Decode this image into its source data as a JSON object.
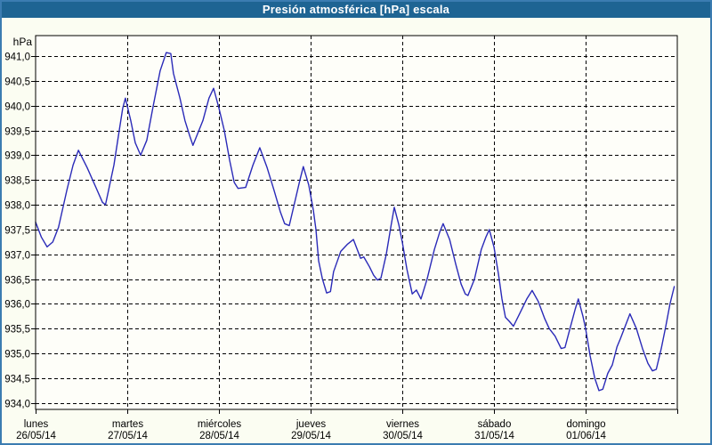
{
  "window": {
    "title": "Presión atmosférica [hPa] escala"
  },
  "colors": {
    "titlebar_bg": "#1E6493",
    "titlebar_text": "#FFFFFF",
    "window_border": "#3B7CB1",
    "window_bg": "#FBFDF2",
    "plot_bg": "#FEFEF9",
    "plot_border": "#000000",
    "grid": "#000000",
    "axis_text": "#000000",
    "line": "#2A2AB8"
  },
  "chart_data": {
    "type": "line",
    "title": "Presión atmosférica [hPa] escala",
    "ylabel": "hPa",
    "legend": "none",
    "grid": {
      "horizontal": true,
      "vertical": true,
      "style": "dashed"
    },
    "y_axis": {
      "min": 934.0,
      "max": 941.0,
      "step": 0.5,
      "plot_range": [
        933.87,
        941.41
      ],
      "tick_labels": [
        "941,0",
        "940,5",
        "940,0",
        "939,5",
        "939,0",
        "938,5",
        "938,0",
        "937,5",
        "937,0",
        "936,5",
        "936,0",
        "935,5",
        "935,0",
        "934,5",
        "934,0"
      ]
    },
    "x_axis": {
      "unit": "hours",
      "range_hours": [
        0,
        168
      ],
      "tick_interval_hours": 24,
      "days": [
        {
          "name": "lunes",
          "date": "26/05/14"
        },
        {
          "name": "martes",
          "date": "27/05/14"
        },
        {
          "name": "miércoles",
          "date": "28/05/14"
        },
        {
          "name": "jueves",
          "date": "29/05/14"
        },
        {
          "name": "viernes",
          "date": "30/05/14"
        },
        {
          "name": "sábado",
          "date": "31/05/14"
        },
        {
          "name": "domingo",
          "date": "01/06/14"
        }
      ]
    },
    "series": [
      {
        "name": "Presión atmosférica",
        "unit": "hPa",
        "color": "#2A2AB8",
        "points": [
          [
            0,
            937.65
          ],
          [
            1.5,
            937.35
          ],
          [
            3,
            937.15
          ],
          [
            4.5,
            937.25
          ],
          [
            6,
            937.55
          ],
          [
            8.2,
            938.3
          ],
          [
            9.8,
            938.8
          ],
          [
            11.2,
            939.1
          ],
          [
            13.5,
            938.75
          ],
          [
            15.8,
            938.35
          ],
          [
            17.5,
            938.05
          ],
          [
            18.3,
            938.0
          ],
          [
            20.5,
            938.8
          ],
          [
            21.9,
            939.5
          ],
          [
            22.8,
            939.95
          ],
          [
            23.5,
            940.15
          ],
          [
            24.9,
            939.7
          ],
          [
            26.1,
            939.25
          ],
          [
            27.5,
            939.0
          ],
          [
            29.1,
            939.3
          ],
          [
            30.8,
            940.0
          ],
          [
            32.6,
            940.7
          ],
          [
            34.2,
            941.07
          ],
          [
            35.4,
            941.05
          ],
          [
            36.1,
            940.65
          ],
          [
            37.8,
            940.15
          ],
          [
            39.1,
            939.7
          ],
          [
            40.3,
            939.4
          ],
          [
            41.2,
            939.2
          ],
          [
            43.8,
            939.7
          ],
          [
            45.4,
            940.15
          ],
          [
            46.6,
            940.35
          ],
          [
            48,
            939.95
          ],
          [
            49.4,
            939.5
          ],
          [
            50.8,
            938.9
          ],
          [
            52,
            938.45
          ],
          [
            53,
            938.33
          ],
          [
            55,
            938.35
          ],
          [
            56.9,
            938.8
          ],
          [
            58.7,
            939.15
          ],
          [
            60.6,
            938.75
          ],
          [
            62.4,
            938.3
          ],
          [
            64.1,
            937.85
          ],
          [
            65.2,
            937.62
          ],
          [
            66.4,
            937.58
          ],
          [
            68,
            938.1
          ],
          [
            69.2,
            938.5
          ],
          [
            70.1,
            938.77
          ],
          [
            71.5,
            938.4
          ],
          [
            72.7,
            937.9
          ],
          [
            73.4,
            937.5
          ],
          [
            74.1,
            936.87
          ],
          [
            75.1,
            936.5
          ],
          [
            76.2,
            936.22
          ],
          [
            77.2,
            936.25
          ],
          [
            78,
            936.65
          ],
          [
            79.9,
            937.06
          ],
          [
            81.6,
            937.2
          ],
          [
            83.2,
            937.3
          ],
          [
            85.1,
            936.92
          ],
          [
            85.9,
            936.95
          ],
          [
            87.4,
            936.75
          ],
          [
            88.5,
            936.58
          ],
          [
            89.5,
            936.48
          ],
          [
            90.4,
            936.52
          ],
          [
            91.8,
            937.0
          ],
          [
            93,
            937.55
          ],
          [
            93.9,
            937.95
          ],
          [
            95.1,
            937.6
          ],
          [
            96,
            937.25
          ],
          [
            97.2,
            936.7
          ],
          [
            98.6,
            936.2
          ],
          [
            99.7,
            936.28
          ],
          [
            100.9,
            936.1
          ],
          [
            102.5,
            936.5
          ],
          [
            104.4,
            937.1
          ],
          [
            105.8,
            937.45
          ],
          [
            106.7,
            937.62
          ],
          [
            108.4,
            937.3
          ],
          [
            110,
            936.8
          ],
          [
            111.4,
            936.4
          ],
          [
            112.5,
            936.2
          ],
          [
            113.2,
            936.17
          ],
          [
            114.9,
            936.5
          ],
          [
            116.7,
            937.1
          ],
          [
            117.9,
            937.35
          ],
          [
            118.8,
            937.5
          ],
          [
            120,
            937.15
          ],
          [
            121.2,
            936.6
          ],
          [
            122.1,
            936.1
          ],
          [
            123,
            935.73
          ],
          [
            124,
            935.65
          ],
          [
            125.1,
            935.55
          ],
          [
            126.7,
            935.8
          ],
          [
            128.6,
            936.1
          ],
          [
            130,
            936.27
          ],
          [
            131.6,
            936.05
          ],
          [
            133.3,
            935.7
          ],
          [
            134.5,
            935.5
          ],
          [
            136,
            935.35
          ],
          [
            137.6,
            935.1
          ],
          [
            138.6,
            935.12
          ],
          [
            139.9,
            935.5
          ],
          [
            141.3,
            935.9
          ],
          [
            142.1,
            936.1
          ],
          [
            143.3,
            935.75
          ],
          [
            144,
            935.5
          ],
          [
            145.2,
            934.95
          ],
          [
            146.4,
            934.5
          ],
          [
            147.5,
            934.25
          ],
          [
            148.5,
            934.28
          ],
          [
            149.8,
            934.6
          ],
          [
            151,
            934.77
          ],
          [
            152.2,
            935.13
          ],
          [
            153.1,
            935.3
          ],
          [
            155.6,
            935.8
          ],
          [
            157.3,
            935.5
          ],
          [
            158.9,
            935.1
          ],
          [
            160.3,
            934.8
          ],
          [
            161.5,
            934.65
          ],
          [
            162.5,
            934.68
          ],
          [
            163.8,
            935.1
          ],
          [
            165,
            935.55
          ],
          [
            166.1,
            936.0
          ],
          [
            167.2,
            936.35
          ]
        ]
      }
    ]
  }
}
